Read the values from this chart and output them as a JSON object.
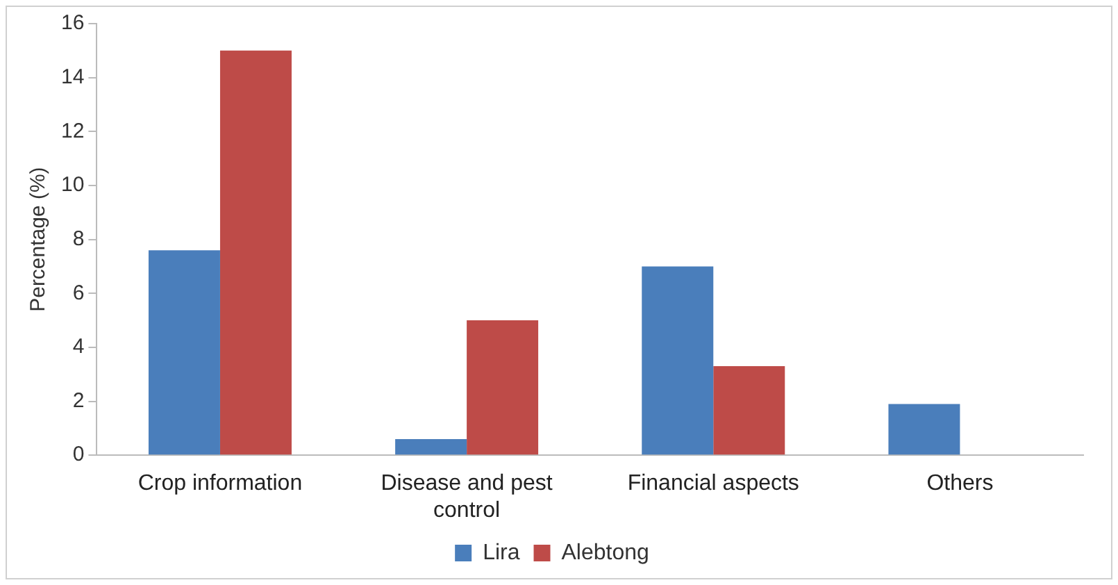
{
  "chart_data": {
    "type": "bar",
    "ylabel": "Percentage (%)",
    "categories": [
      "Crop information",
      "Disease and pest control",
      "Financial aspects",
      "Others"
    ],
    "series": [
      {
        "name": "Lira",
        "color": "#4a7ebb",
        "values": [
          7.6,
          0.6,
          7.0,
          1.9
        ]
      },
      {
        "name": "Alebtong",
        "color": "#be4b48",
        "values": [
          15,
          5,
          3.3,
          0
        ]
      }
    ],
    "ylim": [
      0,
      16
    ],
    "yticks": [
      0,
      2,
      4,
      6,
      8,
      10,
      12,
      14,
      16
    ],
    "grid": false,
    "legend": "bottom"
  }
}
